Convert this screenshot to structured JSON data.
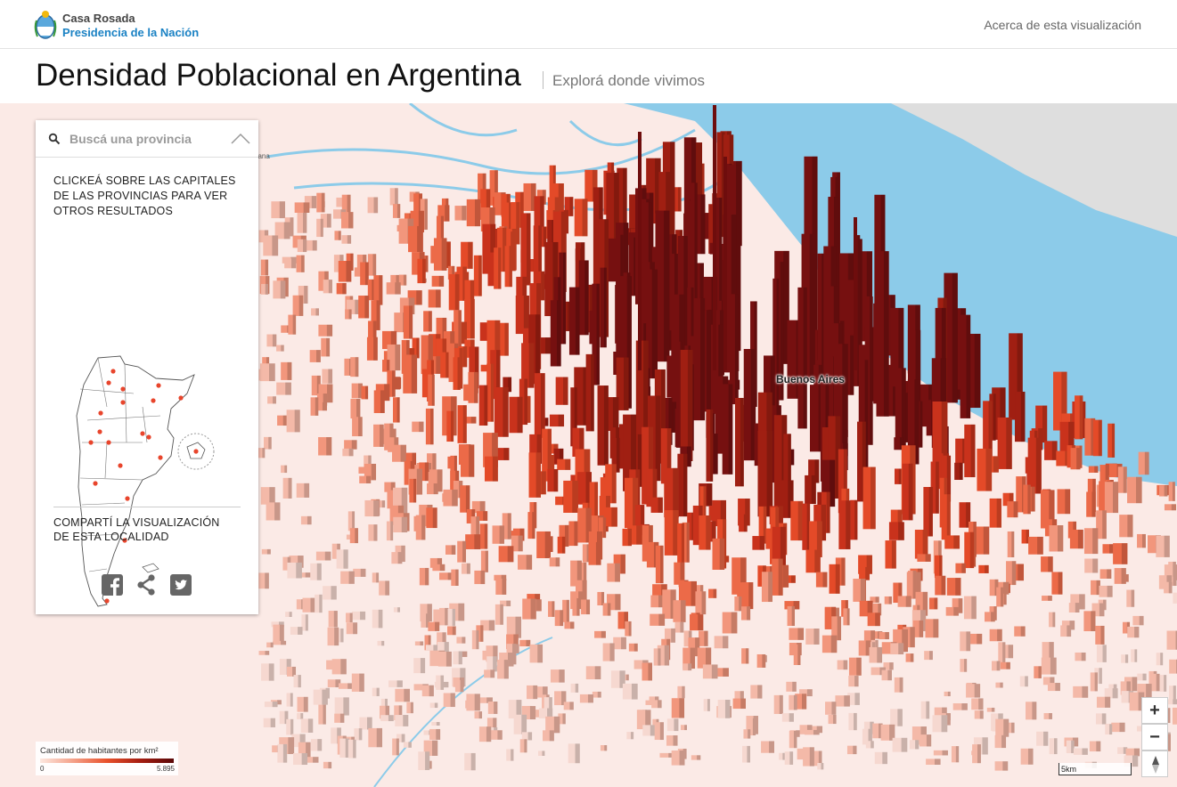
{
  "header": {
    "brand_line1": "Casa Rosada",
    "brand_line2": "Presidencia de la Nación",
    "about_link": "Acerca de esta visualización",
    "title": "Densidad Poblacional en Argentina",
    "subtitle": "Explorá donde vivimos"
  },
  "map": {
    "city_label": "Buenos Aires",
    "town_label": "pana",
    "water_color": "#8ccbe9",
    "land_color": "#fbeae6",
    "bar_color_low": "#f4a088",
    "bar_color_high": "#7a0c0c"
  },
  "panel": {
    "search_placeholder": "Buscá una provincia",
    "instructions": "CLICKEÁ SOBRE LAS CAPITALES DE LAS PROVINCIAS PARA VER OTROS RESULTADOS",
    "share_text": "COMPARTÍ LA VISUALIZACIÓN DE ESTA LOCALIDAD",
    "social": [
      "facebook-icon",
      "share-icon",
      "twitter-icon"
    ],
    "dot_color": "#e8452c"
  },
  "legend": {
    "title": "Cantidad de habitantes por km²",
    "min": "0",
    "max": "5.895"
  },
  "controls": {
    "zoom_in": "+",
    "zoom_out": "−",
    "scale": "5km"
  }
}
